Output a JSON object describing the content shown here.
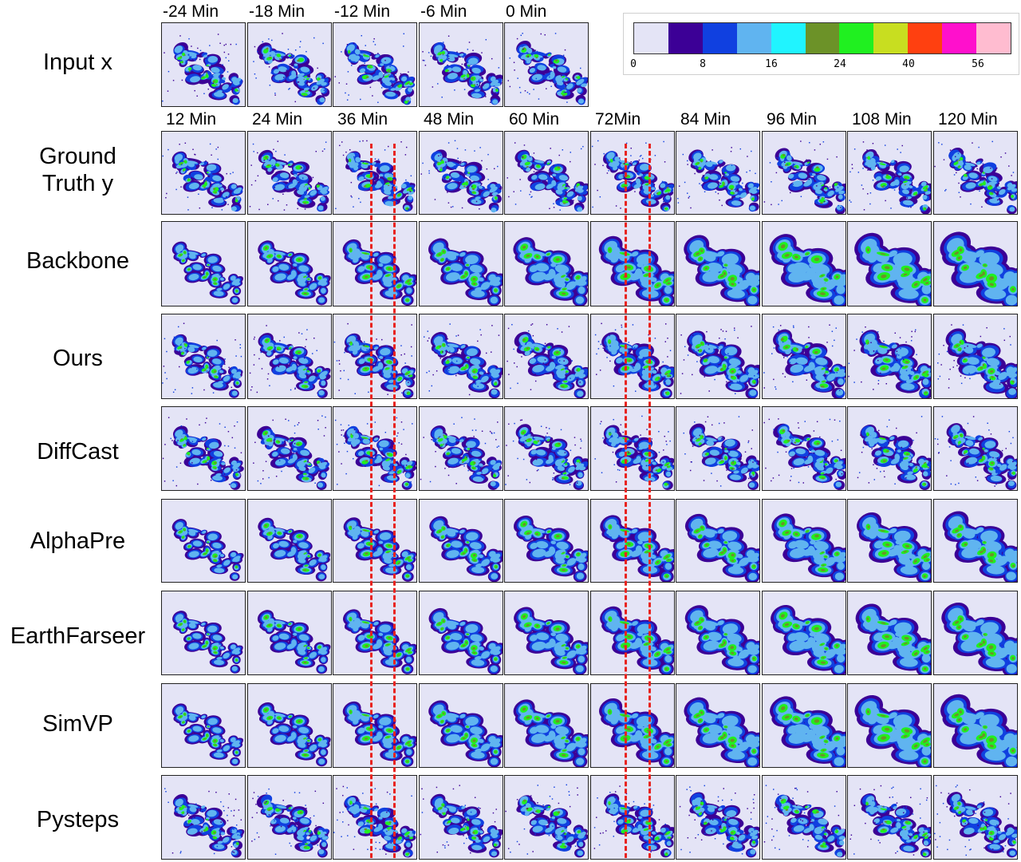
{
  "input_time_labels": [
    "-24 Min",
    "-18 Min",
    "-12 Min",
    "-6 Min",
    "0 Min"
  ],
  "output_time_labels": [
    "12 Min",
    "24 Min",
    "36 Min",
    "48 Min",
    "60 Min",
    "72Min",
    "84 Min",
    "96 Min",
    "108 Min",
    "120 Min"
  ],
  "rows": [
    {
      "label": "Input x"
    },
    {
      "label": "Ground\nTruth y"
    },
    {
      "label": "Backbone"
    },
    {
      "label": "Ours"
    },
    {
      "label": "DiffCast"
    },
    {
      "label": "AlphaPre"
    },
    {
      "label": "EarthFarseer"
    },
    {
      "label": "SimVP"
    },
    {
      "label": "Pysteps"
    }
  ],
  "colorbar": {
    "colors": [
      "#e4e4f6",
      "#3c0096",
      "#1040e0",
      "#60b4f0",
      "#20f4ff",
      "#6c9228",
      "#20f020",
      "#c8de20",
      "#ff4010",
      "#ff10cc",
      "#ffbcd0"
    ],
    "tick_labels": [
      "0",
      "8",
      "16",
      "24",
      "40",
      "56"
    ]
  },
  "highlight_columns": [
    "36 Min",
    "72Min"
  ]
}
